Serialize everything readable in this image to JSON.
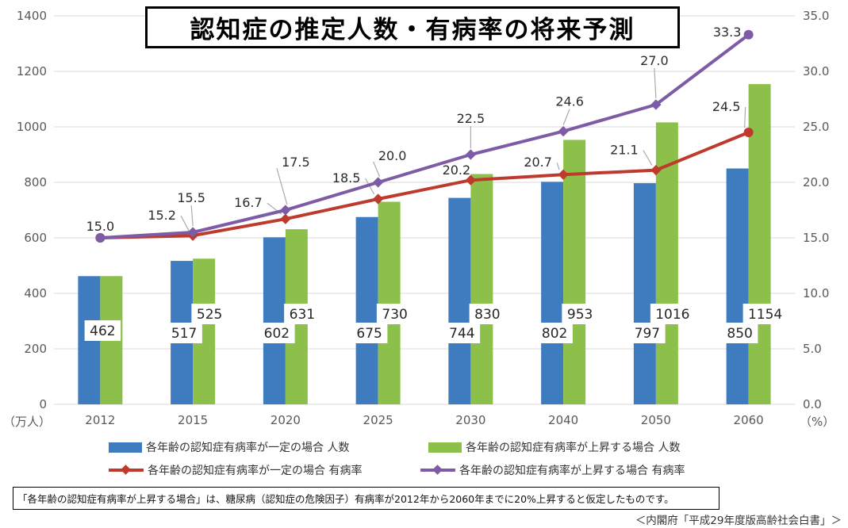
{
  "title": {
    "text": "認知症の推定人数・有病率の将来予測"
  },
  "colors": {
    "bar_fixed": "#3E7CBF",
    "bar_rising": "#8DC04A",
    "line_fixed": "#BE3A2C",
    "line_rising": "#7E5BA5",
    "gridline": "#D9D9D9",
    "axis_text": "#595959",
    "label_text": "#262626",
    "leader": "#ABABAB"
  },
  "chart_data": {
    "type": "bar",
    "subtype": "combo-bar-line-dual-axis",
    "title": "認知症の推定人数・有病率の将来予測",
    "categories": [
      "2012",
      "2015",
      "2020",
      "2025",
      "2030",
      "2040",
      "2050",
      "2060"
    ],
    "left_axis": {
      "unit_label": "（万人）",
      "min": 0,
      "max": 1400,
      "step": 200
    },
    "right_axis": {
      "unit_label": "（%）",
      "min": 0,
      "max": 35,
      "step": 5
    },
    "grid": "horizontal",
    "legend_position": "bottom",
    "series": [
      {
        "name": "各年齢の認知症有病率が一定の場合 人数",
        "type": "bar",
        "axis": "left",
        "color_key": "bar_fixed",
        "values": [
          462,
          517,
          602,
          675,
          744,
          802,
          797,
          850
        ]
      },
      {
        "name": "各年齢の認知症有病率が上昇する場合 人数",
        "type": "bar",
        "axis": "left",
        "color_key": "bar_rising",
        "values": [
          462,
          525,
          631,
          730,
          830,
          953,
          1016,
          1154
        ]
      },
      {
        "name": "各年齢の認知症有病率が一定の場合 有病率",
        "type": "line",
        "axis": "right",
        "color_key": "line_fixed",
        "values": [
          15.0,
          15.2,
          16.7,
          18.5,
          20.2,
          20.7,
          21.1,
          24.5
        ],
        "point_labels": [
          "15.0",
          "15.2",
          "16.7",
          "18.5",
          "20.2",
          "20.7",
          "21.1",
          "24.5"
        ]
      },
      {
        "name": "各年齢の認知症有病率が上昇する場合 有病率",
        "type": "line",
        "axis": "right",
        "color_key": "line_rising",
        "values": [
          15.0,
          15.5,
          17.5,
          20.0,
          22.5,
          24.6,
          27.0,
          33.3
        ],
        "point_labels": [
          "15.0",
          "15.5",
          "17.5",
          "20.0",
          "22.5",
          "24.6",
          "27.0",
          "33.3"
        ]
      }
    ]
  },
  "legend": {
    "items": [
      {
        "label": "各年齢の認知症有病率が一定の場合 人数",
        "swatch": "bar",
        "color_key": "bar_fixed"
      },
      {
        "label": "各年齢の認知症有病率が上昇する場合 人数",
        "swatch": "bar",
        "color_key": "bar_rising"
      },
      {
        "label": "各年齢の認知症有病率が一定の場合 有病率",
        "swatch": "line",
        "color_key": "line_fixed"
      },
      {
        "label": "各年齢の認知症有病率が上昇する場合 有病率",
        "swatch": "line",
        "color_key": "line_rising"
      }
    ]
  },
  "note": {
    "text": "「各年齢の認知症有病率が上昇する場合」は、糖尿病（認知症の危険因子）有病率が2012年から2060年までに20%上昇すると仮定したものです。"
  },
  "source": {
    "text": "＜内閣府「平成29年度版高齢社会白書」＞"
  }
}
